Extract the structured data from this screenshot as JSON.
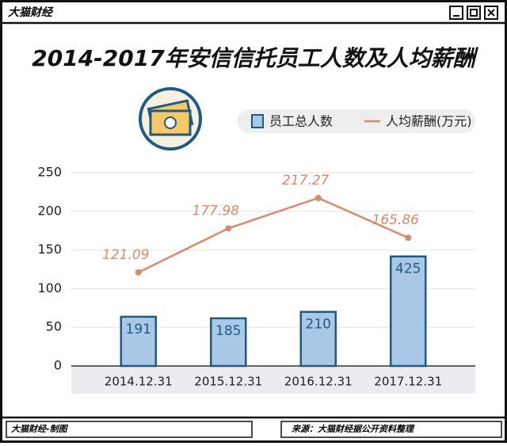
{
  "header": {
    "brand": "大猫财经"
  },
  "chart_data": {
    "type": "bar-line",
    "title": "2014-2017年安信信托员工人数及人均薪酬",
    "categories": [
      "2014.12.31",
      "2015.12.31",
      "2016.12.31",
      "2017.12.31"
    ],
    "series": [
      {
        "name": "员工总人数",
        "type": "bar",
        "axis": "y2",
        "color": "#a9c8e8",
        "values": [
          191,
          185,
          210,
          425
        ]
      },
      {
        "name": "人均薪酬(万元)",
        "type": "line",
        "color": "#d98a6a",
        "values": [
          121.09,
          177.98,
          217.27,
          165.86
        ]
      }
    ],
    "ylim": [
      0,
      250
    ],
    "yticks": [
      0,
      50,
      100,
      150,
      200,
      250
    ],
    "y2lim": [
      0,
      750
    ],
    "grid": true,
    "legend": "top-right"
  },
  "footer": {
    "left": "大猫财经-制图",
    "right": "来源：大猫财经据公开资料整理"
  }
}
